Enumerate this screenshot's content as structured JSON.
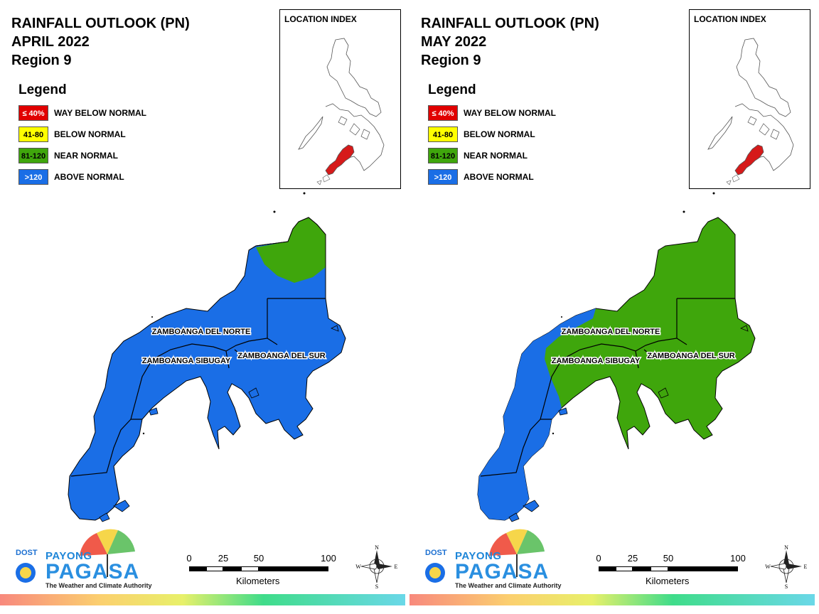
{
  "panels": [
    {
      "title_line1": "RAINFALL OUTLOOK (PN)",
      "title_line2": "APRIL 2022",
      "title_line3": "Region 9",
      "legend": {
        "title": "Legend",
        "items": [
          {
            "code": "≤ 40%",
            "label": "WAY BELOW NORMAL",
            "color": "#e10000",
            "text_color": "#ffffff"
          },
          {
            "code": "41-80",
            "label": "BELOW NORMAL",
            "color": "#ffff00",
            "text_color": "#000000"
          },
          {
            "code": "81-120",
            "label": "NEAR NORMAL",
            "color": "#3fa60c",
            "text_color": "#000000"
          },
          {
            "code": ">120",
            "label": "ABOVE NORMAL",
            "color": "#1a6ee6",
            "text_color": "#ffffff"
          }
        ]
      },
      "location_index_title": "LOCATION INDEX",
      "provinces": [
        "ZAMBOANGA DEL NORTE",
        "ZAMBOANGA SIBUGAY",
        "ZAMBOANGA DEL SUR"
      ],
      "dominant_category": "ABOVE NORMAL",
      "secondary_category": "NEAR NORMAL"
    },
    {
      "title_line1": "RAINFALL OUTLOOK (PN)",
      "title_line2": "MAY 2022",
      "title_line3": "Region 9",
      "legend": {
        "title": "Legend",
        "items": [
          {
            "code": "≤ 40%",
            "label": "WAY BELOW NORMAL",
            "color": "#e10000",
            "text_color": "#ffffff"
          },
          {
            "code": "41-80",
            "label": "BELOW NORMAL",
            "color": "#ffff00",
            "text_color": "#000000"
          },
          {
            "code": "81-120",
            "label": "NEAR NORMAL",
            "color": "#3fa60c",
            "text_color": "#000000"
          },
          {
            "code": ">120",
            "label": "ABOVE NORMAL",
            "color": "#1a6ee6",
            "text_color": "#ffffff"
          }
        ]
      },
      "location_index_title": "LOCATION INDEX",
      "provinces": [
        "ZAMBOANGA DEL NORTE",
        "ZAMBOANGA SIBUGAY",
        "ZAMBOANGA DEL SUR"
      ],
      "dominant_category": "NEAR NORMAL",
      "secondary_category": "ABOVE NORMAL"
    }
  ],
  "scale": {
    "ticks": [
      "0",
      "25",
      "50",
      "100"
    ],
    "unit": "Kilometers"
  },
  "compass": {
    "n": "N",
    "s": "S",
    "e": "E",
    "w": "W"
  },
  "logo": {
    "dost": "DOST",
    "payong": "PAYONG",
    "pagasa": "PAGASA",
    "tagline": "The Weather and Climate Authority"
  },
  "colors": {
    "above_normal": "#1a6ee6",
    "near_normal": "#3fa60c",
    "highlight_region": "#d61a1a"
  }
}
